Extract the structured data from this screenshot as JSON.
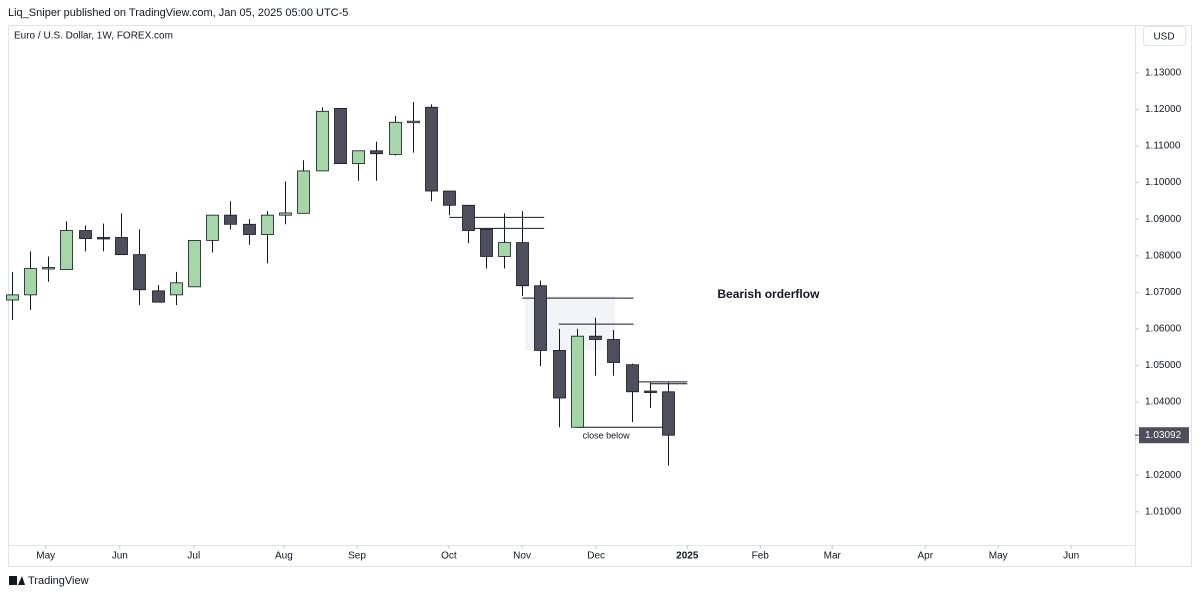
{
  "header": "Liq_Sniper published on TradingView.com, Jan 05, 2025 05:00 UTC-5",
  "symbol": "Euro / U.S. Dollar, 1W, FOREX.com",
  "currency": "USD",
  "footer": "TradingView",
  "chart_data": {
    "type": "candlestick",
    "colors": {
      "up": "#a5d6a7",
      "down": "#4e4e5c",
      "wick": "#131722"
    },
    "candles": [
      {
        "open": 1.0679,
        "high": 1.0756,
        "low": 1.0624,
        "close": 1.0693
      },
      {
        "open": 1.0693,
        "high": 1.0812,
        "low": 1.0652,
        "close": 1.0765
      },
      {
        "open": 1.0765,
        "high": 1.0798,
        "low": 1.0729,
        "close": 1.0768
      },
      {
        "open": 1.0762,
        "high": 1.0894,
        "low": 1.0762,
        "close": 1.0869
      },
      {
        "open": 1.0869,
        "high": 1.0883,
        "low": 1.0812,
        "close": 1.0847
      },
      {
        "open": 1.085,
        "high": 1.0888,
        "low": 1.0812,
        "close": 1.0847
      },
      {
        "open": 1.085,
        "high": 1.0916,
        "low": 1.0803,
        "close": 1.0803
      },
      {
        "open": 1.0803,
        "high": 1.0872,
        "low": 1.0665,
        "close": 1.0707
      },
      {
        "open": 1.0704,
        "high": 1.072,
        "low": 1.0673,
        "close": 1.0673
      },
      {
        "open": 1.0693,
        "high": 1.0756,
        "low": 1.0665,
        "close": 1.0726
      },
      {
        "open": 1.0715,
        "high": 1.0842,
        "low": 1.0715,
        "close": 1.0842
      },
      {
        "open": 1.0842,
        "high": 1.0911,
        "low": 1.0809,
        "close": 1.0911
      },
      {
        "open": 1.0911,
        "high": 1.0949,
        "low": 1.0872,
        "close": 1.0886
      },
      {
        "open": 1.0886,
        "high": 1.09,
        "low": 1.083,
        "close": 1.0858
      },
      {
        "open": 1.0858,
        "high": 1.0922,
        "low": 1.0779,
        "close": 1.0911
      },
      {
        "open": 1.0911,
        "high": 1.1003,
        "low": 1.0886,
        "close": 1.0917
      },
      {
        "open": 1.0916,
        "high": 1.1061,
        "low": 1.0916,
        "close": 1.1032
      },
      {
        "open": 1.1032,
        "high": 1.1206,
        "low": 1.1032,
        "close": 1.1195
      },
      {
        "open": 1.1203,
        "high": 1.1203,
        "low": 1.1052,
        "close": 1.1052
      },
      {
        "open": 1.1052,
        "high": 1.1087,
        "low": 1.1005,
        "close": 1.1087
      },
      {
        "open": 1.1087,
        "high": 1.1112,
        "low": 1.1005,
        "close": 1.1079
      },
      {
        "open": 1.1077,
        "high": 1.1182,
        "low": 1.1074,
        "close": 1.1165
      },
      {
        "open": 1.1165,
        "high": 1.122,
        "low": 1.1082,
        "close": 1.1168
      },
      {
        "open": 1.1206,
        "high": 1.1214,
        "low": 1.0949,
        "close": 1.0977
      },
      {
        "open": 1.0977,
        "high": 1.0977,
        "low": 1.0911,
        "close": 1.0938
      },
      {
        "open": 1.0938,
        "high": 1.0938,
        "low": 1.0834,
        "close": 1.0869
      },
      {
        "open": 1.0872,
        "high": 1.0872,
        "low": 1.0765,
        "close": 1.0798
      },
      {
        "open": 1.0798,
        "high": 1.0916,
        "low": 1.0765,
        "close": 1.0836
      },
      {
        "open": 1.0836,
        "high": 1.0922,
        "low": 1.069,
        "close": 1.0718
      },
      {
        "open": 1.0718,
        "high": 1.0732,
        "low": 1.0498,
        "close": 1.0541
      },
      {
        "open": 1.0541,
        "high": 1.06,
        "low": 1.0331,
        "close": 1.0411
      },
      {
        "open": 1.0331,
        "high": 1.06,
        "low": 1.0331,
        "close": 1.058
      },
      {
        "open": 1.058,
        "high": 1.063,
        "low": 1.0472,
        "close": 1.0571
      },
      {
        "open": 1.0571,
        "high": 1.0597,
        "low": 1.0472,
        "close": 1.0508
      },
      {
        "open": 1.0502,
        "high": 1.0505,
        "low": 1.0345,
        "close": 1.0428
      },
      {
        "open": 1.043,
        "high": 1.0453,
        "low": 1.0384,
        "close": 1.0428
      },
      {
        "open": 1.0428,
        "high": 1.0453,
        "low": 1.0226,
        "close": 1.03092
      }
    ],
    "last_price": {
      "value": 1.03092,
      "label": "1.03092"
    },
    "ylim": [
      1.0009,
      1.1431
    ],
    "yticks": [
      {
        "value": 1.13,
        "label": "1.13000"
      },
      {
        "value": 1.12,
        "label": "1.12000"
      },
      {
        "value": 1.11,
        "label": "1.11000"
      },
      {
        "value": 1.1,
        "label": "1.10000"
      },
      {
        "value": 1.09,
        "label": "1.09000"
      },
      {
        "value": 1.08,
        "label": "1.08000"
      },
      {
        "value": 1.07,
        "label": "1.07000"
      },
      {
        "value": 1.06,
        "label": "1.06000"
      },
      {
        "value": 1.05,
        "label": "1.05000"
      },
      {
        "value": 1.04,
        "label": "1.04000"
      },
      {
        "value": 1.03,
        "label": "1.03000"
      },
      {
        "value": 1.02,
        "label": "1.02000"
      },
      {
        "value": 1.01,
        "label": "1.01000"
      }
    ],
    "xlim": [
      -0.2,
      61.6
    ],
    "xticks": [
      {
        "value": 1.87,
        "label": "May"
      },
      {
        "value": 5.93,
        "label": "Jun"
      },
      {
        "value": 9.99,
        "label": "Jul"
      },
      {
        "value": 14.93,
        "label": "Aug"
      },
      {
        "value": 18.94,
        "label": "Sep"
      },
      {
        "value": 23.98,
        "label": "Oct"
      },
      {
        "value": 27.99,
        "label": "Nov"
      },
      {
        "value": 32.05,
        "label": "Dec"
      },
      {
        "value": 37.05,
        "label": "2025"
      },
      {
        "value": 41.05,
        "label": "Feb"
      },
      {
        "value": 45.0,
        "label": "Mar"
      },
      {
        "value": 50.1,
        "label": "Apr"
      },
      {
        "value": 54.1,
        "label": "May"
      },
      {
        "value": 58.1,
        "label": "Jun"
      }
    ],
    "levels": [
      {
        "price": 1.0905,
        "from": 24,
        "to": 29.2
      },
      {
        "price": 1.0875,
        "from": 25,
        "to": 29.2
      },
      {
        "price": 1.0684,
        "from": 28,
        "to": 34.1
      },
      {
        "price": 1.0613,
        "from": 30,
        "to": 34.1
      },
      {
        "price": 1.0455,
        "from": 34,
        "to": 37.05
      },
      {
        "price": 1.045,
        "from": 35,
        "to": 37.05
      },
      {
        "price": 1.0331,
        "from": 31,
        "to": 36
      }
    ],
    "annotations": [
      {
        "text": "Bearish orderflow",
        "x": 38.7,
        "price": 1.0693
      },
      {
        "text": "close below",
        "x": 32.6,
        "price": 1.0307
      }
    ]
  }
}
